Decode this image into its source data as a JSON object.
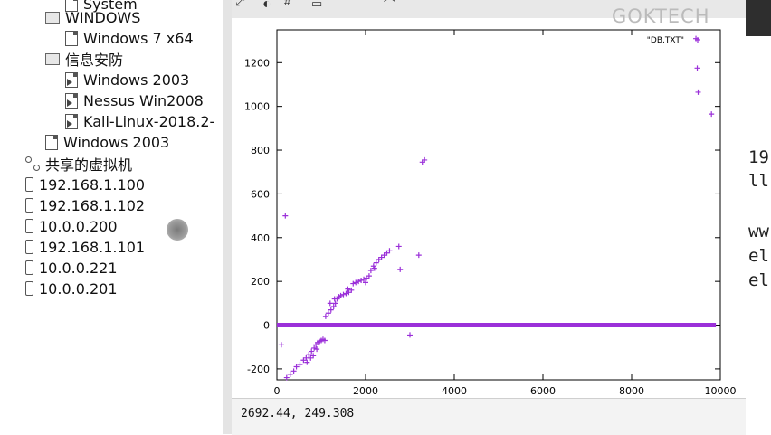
{
  "tree": {
    "items": [
      {
        "label": "System",
        "kind": "vm",
        "depth": 2,
        "top": -7
      },
      {
        "label": "WINDOWS",
        "kind": "folder",
        "depth": 1,
        "top": 8
      },
      {
        "label": "Windows 7 x64",
        "kind": "vm",
        "depth": 2,
        "top": 31
      },
      {
        "label": "信息安防",
        "kind": "folder",
        "depth": 1,
        "top": 54
      },
      {
        "label": "Windows 2003",
        "kind": "vm-run",
        "depth": 2,
        "top": 77
      },
      {
        "label": "Nessus Win2008",
        "kind": "vm-run",
        "depth": 2,
        "top": 100
      },
      {
        "label": "Kali-Linux-2018.2-",
        "kind": "vm-run",
        "depth": 2,
        "top": 123
      },
      {
        "label": "Windows 2003",
        "kind": "vm",
        "depth": 1,
        "top": 146
      },
      {
        "label": "共享的虚拟机",
        "kind": "shared",
        "depth": 0,
        "top": 170
      },
      {
        "label": "192.168.1.100",
        "kind": "host",
        "depth": 0,
        "top": 193
      },
      {
        "label": "192.168.1.102",
        "kind": "host",
        "depth": 0,
        "top": 216
      },
      {
        "label": "10.0.0.200",
        "kind": "host",
        "depth": 0,
        "top": 239
      },
      {
        "label": "192.168.1.101",
        "kind": "host",
        "depth": 0,
        "top": 262
      },
      {
        "label": "10.0.0.221",
        "kind": "host",
        "depth": 0,
        "top": 285
      },
      {
        "label": "10.0.0.201",
        "kind": "host",
        "depth": 0,
        "top": 308
      }
    ]
  },
  "watermark": "GOKTECH",
  "plot_window": {
    "toolbar_icons": [
      "fit-icon",
      "replot-icon",
      "grid-icon",
      "print-icon",
      "export-icon"
    ],
    "status_coords": "2692.44,  249.308"
  },
  "terminal": {
    "lines": [
      "19",
      "ll",
      "ww",
      "el",
      "el"
    ]
  },
  "chart_data": {
    "type": "scatter",
    "title": "",
    "xlabel": "",
    "ylabel": "",
    "xlim": [
      0,
      10000
    ],
    "ylim": [
      -250,
      1350
    ],
    "xticks": [
      0,
      2000,
      4000,
      6000,
      8000,
      10000
    ],
    "yticks": [
      -200,
      0,
      200,
      400,
      600,
      800,
      1000,
      1200
    ],
    "grid": false,
    "legend_position": "top-right",
    "marker": "+",
    "color": "#9b30d9",
    "series": [
      {
        "name": "\"DB.TXT\"",
        "points": [
          [
            100,
            -90
          ],
          [
            190,
            500
          ],
          [
            3200,
            320
          ],
          [
            3280,
            745
          ],
          [
            3330,
            755
          ],
          [
            2750,
            360
          ],
          [
            2780,
            255
          ],
          [
            3000,
            -45
          ],
          [
            9450,
            1310
          ],
          [
            9480,
            1175
          ],
          [
            9500,
            1065
          ],
          [
            9800,
            965
          ],
          [
            220,
            -240
          ],
          [
            300,
            -225
          ],
          [
            380,
            -210
          ],
          [
            440,
            -190
          ],
          [
            520,
            -180
          ],
          [
            600,
            -160
          ],
          [
            660,
            -150
          ],
          [
            720,
            -135
          ],
          [
            780,
            -120
          ],
          [
            840,
            -105
          ],
          [
            880,
            -90
          ],
          [
            920,
            -80
          ],
          [
            960,
            -75
          ],
          [
            1000,
            -70
          ],
          [
            1040,
            -65
          ],
          [
            1080,
            -70
          ],
          [
            680,
            -170
          ],
          [
            760,
            -150
          ],
          [
            820,
            -140
          ],
          [
            900,
            -110
          ],
          [
            1100,
            40
          ],
          [
            1160,
            55
          ],
          [
            1220,
            70
          ],
          [
            1280,
            85
          ],
          [
            1320,
            100
          ],
          [
            1360,
            120
          ],
          [
            1400,
            130
          ],
          [
            1440,
            135
          ],
          [
            1500,
            140
          ],
          [
            1560,
            145
          ],
          [
            1620,
            150
          ],
          [
            1680,
            160
          ],
          [
            1720,
            190
          ],
          [
            1780,
            195
          ],
          [
            1840,
            200
          ],
          [
            1900,
            205
          ],
          [
            1960,
            210
          ],
          [
            2020,
            215
          ],
          [
            2080,
            225
          ],
          [
            2120,
            250
          ],
          [
            2180,
            270
          ],
          [
            2240,
            285
          ],
          [
            2300,
            300
          ],
          [
            2360,
            310
          ],
          [
            2420,
            320
          ],
          [
            2480,
            330
          ],
          [
            2540,
            340
          ],
          [
            1200,
            100
          ],
          [
            1300,
            120
          ],
          [
            1600,
            165
          ],
          [
            2000,
            195
          ],
          [
            2200,
            260
          ]
        ]
      }
    ],
    "baseline": {
      "y": 0,
      "x_from": 0,
      "x_to": 9900
    }
  }
}
